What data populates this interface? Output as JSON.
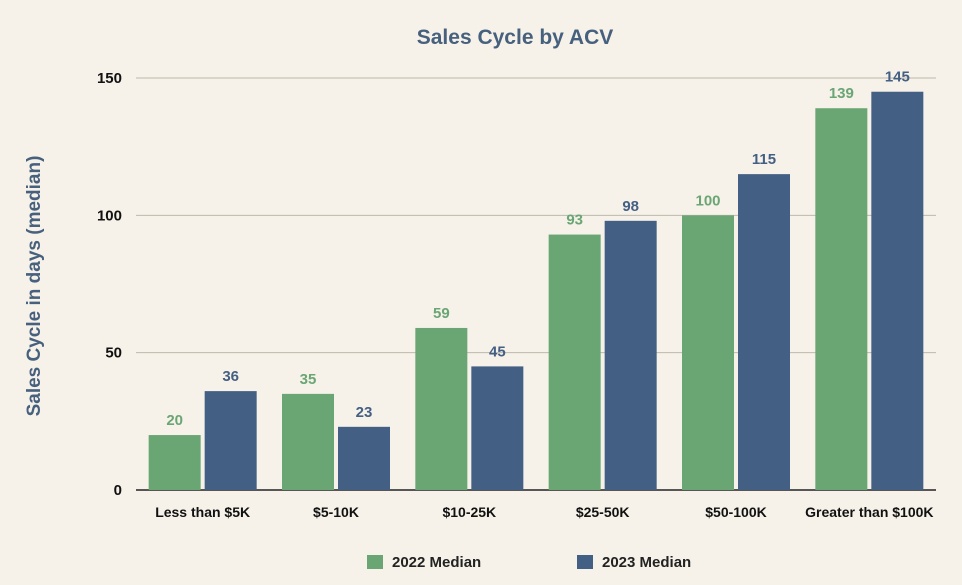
{
  "chart_data": {
    "type": "bar",
    "title": "Sales Cycle by ACV",
    "xlabel": "",
    "ylabel": "Sales Cycle in days (median)",
    "ylim": [
      0,
      150
    ],
    "yticks": [
      0,
      50,
      100,
      150
    ],
    "grid": true,
    "legend_position": "bottom",
    "categories": [
      "Less than $5K",
      "$5-10K",
      "$10-25K",
      "$25-50K",
      "$50-100K",
      "Greater than $100K"
    ],
    "series": [
      {
        "name": "2022 Median",
        "color": "#6aa574",
        "values": [
          20,
          35,
          59,
          93,
          100,
          139
        ]
      },
      {
        "name": "2023 Median",
        "color": "#445f84",
        "values": [
          36,
          23,
          45,
          98,
          115,
          145
        ]
      }
    ]
  }
}
